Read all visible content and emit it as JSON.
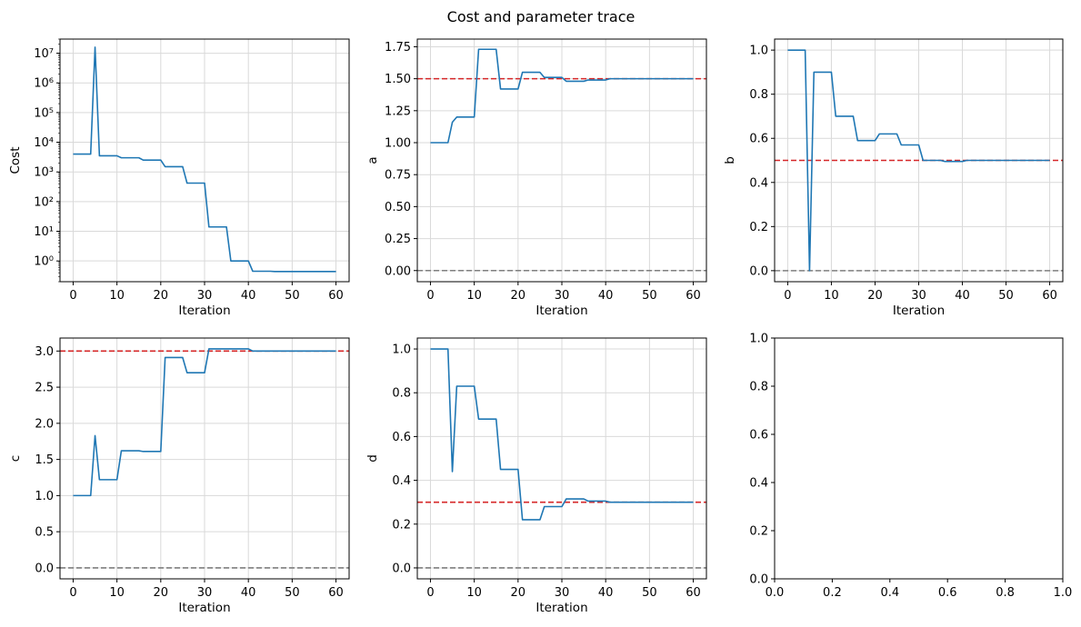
{
  "figure": {
    "title": "Cost and parameter trace",
    "line_color": "#1f77b4",
    "target_color": "#d62728",
    "zero_color": "#7f7f7f",
    "grid_color": "#d9d9d9"
  },
  "chart_data": [
    {
      "id": "cost",
      "type": "line",
      "xlabel": "Iteration",
      "ylabel": "Cost",
      "xlim": [
        -3,
        63
      ],
      "ylim": [
        0.2,
        30000000
      ],
      "yscale": "log",
      "grid": true,
      "xticks": [
        0,
        10,
        20,
        30,
        40,
        50,
        60
      ],
      "xtick_labels": [
        "0",
        "10",
        "20",
        "30",
        "40",
        "50",
        "60"
      ],
      "yticks": [
        1,
        10,
        100,
        1000,
        10000,
        100000,
        1000000,
        10000000
      ],
      "ytick_labels": [
        "10⁰",
        "10¹",
        "10²",
        "10³",
        "10⁴",
        "10⁵",
        "10⁶",
        "10⁷"
      ],
      "hlines": [],
      "series": [
        {
          "x": [
            0,
            4,
            5,
            6,
            10,
            11,
            15,
            16,
            20,
            21,
            25,
            26,
            30,
            31,
            35,
            36,
            40,
            41,
            45,
            46,
            50,
            55,
            60
          ],
          "values": [
            4000,
            4000,
            16000000,
            3500,
            3500,
            3000,
            3000,
            2500,
            2500,
            1500,
            1500,
            420,
            420,
            14,
            14,
            1.0,
            1.0,
            0.45,
            0.45,
            0.44,
            0.44,
            0.44,
            0.44
          ]
        }
      ]
    },
    {
      "id": "a",
      "type": "line",
      "xlabel": "Iteration",
      "ylabel": "a",
      "xlim": [
        -3,
        63
      ],
      "ylim": [
        -0.087,
        1.81
      ],
      "grid": true,
      "xticks": [
        0,
        10,
        20,
        30,
        40,
        50,
        60
      ],
      "xtick_labels": [
        "0",
        "10",
        "20",
        "30",
        "40",
        "50",
        "60"
      ],
      "yticks": [
        0,
        0.25,
        0.5,
        0.75,
        1.0,
        1.25,
        1.5,
        1.75
      ],
      "ytick_labels": [
        "0.00",
        "0.25",
        "0.50",
        "0.75",
        "1.00",
        "1.25",
        "1.50",
        "1.75"
      ],
      "hlines": [
        {
          "y": 1.5,
          "kind": "target"
        },
        {
          "y": 0,
          "kind": "zero"
        }
      ],
      "series": [
        {
          "x": [
            0,
            4,
            5,
            6,
            10,
            11,
            15,
            16,
            20,
            21,
            25,
            26,
            30,
            31,
            35,
            36,
            40,
            41,
            45,
            50,
            55,
            60
          ],
          "values": [
            1.0,
            1.0,
            1.16,
            1.2,
            1.2,
            1.73,
            1.73,
            1.42,
            1.42,
            1.55,
            1.55,
            1.51,
            1.51,
            1.48,
            1.48,
            1.49,
            1.49,
            1.5,
            1.5,
            1.5,
            1.5,
            1.5
          ]
        }
      ]
    },
    {
      "id": "b",
      "type": "line",
      "xlabel": "Iteration",
      "ylabel": "b",
      "xlim": [
        -3,
        63
      ],
      "ylim": [
        -0.05,
        1.05
      ],
      "grid": true,
      "xticks": [
        0,
        10,
        20,
        30,
        40,
        50,
        60
      ],
      "xtick_labels": [
        "0",
        "10",
        "20",
        "30",
        "40",
        "50",
        "60"
      ],
      "yticks": [
        0,
        0.2,
        0.4,
        0.6,
        0.8,
        1.0
      ],
      "ytick_labels": [
        "0.0",
        "0.2",
        "0.4",
        "0.6",
        "0.8",
        "1.0"
      ],
      "hlines": [
        {
          "y": 0.5,
          "kind": "target"
        },
        {
          "y": 0,
          "kind": "zero"
        }
      ],
      "series": [
        {
          "x": [
            0,
            4,
            5,
            6,
            10,
            11,
            15,
            16,
            20,
            21,
            25,
            26,
            30,
            31,
            35,
            36,
            40,
            41,
            45,
            50,
            55,
            60
          ],
          "values": [
            1.0,
            1.0,
            0.0,
            0.9,
            0.9,
            0.7,
            0.7,
            0.59,
            0.59,
            0.62,
            0.62,
            0.57,
            0.57,
            0.5,
            0.5,
            0.495,
            0.495,
            0.5,
            0.5,
            0.5,
            0.5,
            0.5
          ]
        }
      ]
    },
    {
      "id": "c",
      "type": "line",
      "xlabel": "Iteration",
      "ylabel": "c",
      "xlim": [
        -3,
        63
      ],
      "ylim": [
        -0.152,
        3.18
      ],
      "grid": true,
      "xticks": [
        0,
        10,
        20,
        30,
        40,
        50,
        60
      ],
      "xtick_labels": [
        "0",
        "10",
        "20",
        "30",
        "40",
        "50",
        "60"
      ],
      "yticks": [
        0,
        0.5,
        1.0,
        1.5,
        2.0,
        2.5,
        3.0
      ],
      "ytick_labels": [
        "0.0",
        "0.5",
        "1.0",
        "1.5",
        "2.0",
        "2.5",
        "3.0"
      ],
      "hlines": [
        {
          "y": 3.0,
          "kind": "target"
        },
        {
          "y": 0,
          "kind": "zero"
        }
      ],
      "series": [
        {
          "x": [
            0,
            4,
            5,
            6,
            10,
            11,
            15,
            16,
            20,
            21,
            25,
            26,
            30,
            31,
            35,
            36,
            40,
            41,
            45,
            50,
            55,
            60
          ],
          "values": [
            1.0,
            1.0,
            1.83,
            1.22,
            1.22,
            1.62,
            1.62,
            1.61,
            1.61,
            2.91,
            2.91,
            2.7,
            2.7,
            3.03,
            3.03,
            3.03,
            3.03,
            3.0,
            3.0,
            3.0,
            3.0,
            3.0
          ]
        }
      ]
    },
    {
      "id": "d",
      "type": "line",
      "xlabel": "Iteration",
      "ylabel": "d",
      "xlim": [
        -3,
        63
      ],
      "ylim": [
        -0.05,
        1.05
      ],
      "grid": true,
      "xticks": [
        0,
        10,
        20,
        30,
        40,
        50,
        60
      ],
      "xtick_labels": [
        "0",
        "10",
        "20",
        "30",
        "40",
        "50",
        "60"
      ],
      "yticks": [
        0,
        0.2,
        0.4,
        0.6,
        0.8,
        1.0
      ],
      "ytick_labels": [
        "0.0",
        "0.2",
        "0.4",
        "0.6",
        "0.8",
        "1.0"
      ],
      "hlines": [
        {
          "y": 0.3,
          "kind": "target"
        },
        {
          "y": 0,
          "kind": "zero"
        }
      ],
      "series": [
        {
          "x": [
            0,
            4,
            5,
            6,
            10,
            11,
            15,
            16,
            20,
            21,
            25,
            26,
            30,
            31,
            35,
            36,
            40,
            41,
            45,
            50,
            55,
            60
          ],
          "values": [
            1.0,
            1.0,
            0.44,
            0.83,
            0.83,
            0.68,
            0.68,
            0.45,
            0.45,
            0.22,
            0.22,
            0.28,
            0.28,
            0.315,
            0.315,
            0.305,
            0.305,
            0.3,
            0.3,
            0.3,
            0.3,
            0.3
          ]
        }
      ]
    },
    {
      "id": "empty",
      "type": "line",
      "xlabel": "",
      "ylabel": "",
      "xlim": [
        0,
        1
      ],
      "ylim": [
        0,
        1
      ],
      "grid": false,
      "xticks": [
        0,
        0.2,
        0.4,
        0.6,
        0.8,
        1.0
      ],
      "xtick_labels": [
        "0.0",
        "0.2",
        "0.4",
        "0.6",
        "0.8",
        "1.0"
      ],
      "yticks": [
        0,
        0.2,
        0.4,
        0.6,
        0.8,
        1.0
      ],
      "ytick_labels": [
        "0.0",
        "0.2",
        "0.4",
        "0.6",
        "0.8",
        "1.0"
      ],
      "hlines": [],
      "series": []
    }
  ]
}
